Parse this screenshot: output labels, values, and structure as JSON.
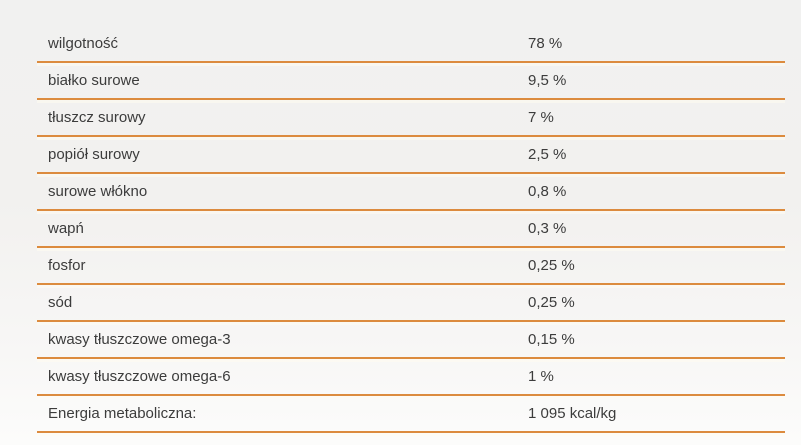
{
  "page": {
    "background_top_color": "#f1f1f0",
    "background_bottom_color": "#fcfcfb"
  },
  "table": {
    "divider_color": "#dc8b3e",
    "text_color": "#3c3c3c",
    "rows": [
      {
        "label": "wilgotność",
        "value": "78 %"
      },
      {
        "label": "białko surowe",
        "value": "9,5 %"
      },
      {
        "label": "tłuszcz surowy",
        "value": "7 %"
      },
      {
        "label": "popiół surowy",
        "value": "2,5 %"
      },
      {
        "label": "surowe włókno",
        "value": "0,8 %"
      },
      {
        "label": "wapń",
        "value": "0,3 %"
      },
      {
        "label": "fosfor",
        "value": "0,25 %"
      },
      {
        "label": "sód",
        "value": "0,25 %"
      },
      {
        "label": "kwasy tłuszczowe omega-3",
        "value": "0,15 %"
      },
      {
        "label": "kwasy tłuszczowe omega-6",
        "value": "1 %"
      },
      {
        "label": "Energia metaboliczna:",
        "value": "1 095 kcal/kg"
      }
    ]
  }
}
